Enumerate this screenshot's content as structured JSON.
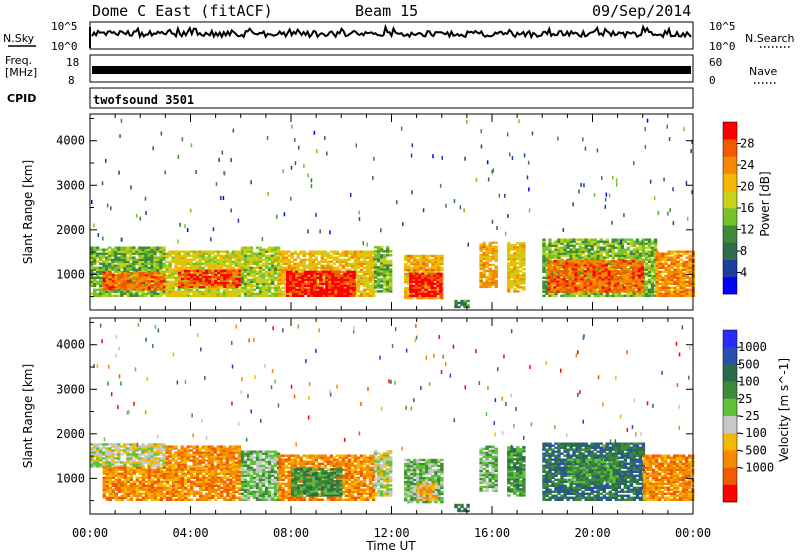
{
  "header": {
    "title": "Dome C East (fitACF)",
    "beam": "Beam 15",
    "date": "09/Sep/2014"
  },
  "sky_panel": {
    "left_label": "N.Sky",
    "right_label": "N.Search",
    "left_ticks": [
      "10^5",
      "10^0"
    ],
    "right_ticks": [
      "10^5",
      "10^0"
    ]
  },
  "freq_panel": {
    "left_label": "Freq.",
    "left_unit": "[MHz]",
    "right_label": "Nave",
    "left_ticks": [
      "18",
      "8"
    ],
    "right_ticks": [
      "60",
      "0"
    ]
  },
  "cpid_panel": {
    "label": "CPID",
    "program": "twofsound 3501"
  },
  "colors": {
    "power": [
      "#0000ff",
      "#1c3e9c",
      "#2e6b4f",
      "#3e8a3a",
      "#77c22a",
      "#c8d01a",
      "#f5b800",
      "#f58a00",
      "#f25a00",
      "#ff0000"
    ],
    "velocity": [
      "#2a2aff",
      "#2a4fb0",
      "#2a6b4f",
      "#3e8a3a",
      "#5cc23a",
      "#c8c8c8",
      "#f5b800",
      "#f58a00",
      "#f25a00",
      "#ff0000"
    ]
  },
  "chart_data": [
    {
      "type": "heatmap",
      "title": "",
      "xlabel": "",
      "ylabel": "Slant Range [km]",
      "x_ticks": [
        "00:00",
        "04:00",
        "08:00",
        "12:00",
        "16:00",
        "20:00",
        "00:00"
      ],
      "y_ticks": [
        1000,
        2000,
        3000,
        4000
      ],
      "ylim": [
        200,
        4600
      ],
      "xlim_hours": [
        0,
        24
      ],
      "colorbar": {
        "label": "Power [dB]",
        "ticks": [
          4,
          8,
          12,
          16,
          20,
          24,
          28
        ],
        "range": [
          0,
          32
        ]
      },
      "echo_blocks": [
        {
          "t0": 0.0,
          "t1": 3.0,
          "r0": 500,
          "r1": 1600,
          "v": 14
        },
        {
          "t0": 0.5,
          "t1": 3.0,
          "r0": 650,
          "r1": 1050,
          "v": 26
        },
        {
          "t0": 3.0,
          "t1": 6.0,
          "r0": 500,
          "r1": 1500,
          "v": 18
        },
        {
          "t0": 3.5,
          "t1": 6.0,
          "r0": 700,
          "r1": 1100,
          "v": 28
        },
        {
          "t0": 6.0,
          "t1": 7.5,
          "r0": 500,
          "r1": 1600,
          "v": 16
        },
        {
          "t0": 7.5,
          "t1": 11.3,
          "r0": 500,
          "r1": 1500,
          "v": 20
        },
        {
          "t0": 7.8,
          "t1": 10.5,
          "r0": 500,
          "r1": 1050,
          "v": 30
        },
        {
          "t0": 11.3,
          "t1": 12.0,
          "r0": 600,
          "r1": 1600,
          "v": 14
        },
        {
          "t0": 12.5,
          "t1": 14.0,
          "r0": 450,
          "r1": 1400,
          "v": 22
        },
        {
          "t0": 12.7,
          "t1": 13.9,
          "r0": 500,
          "r1": 1000,
          "v": 30
        },
        {
          "t0": 14.5,
          "t1": 15.0,
          "r0": 250,
          "r1": 400,
          "v": 10
        },
        {
          "t0": 15.5,
          "t1": 16.2,
          "r0": 700,
          "r1": 1700,
          "v": 22
        },
        {
          "t0": 16.6,
          "t1": 17.3,
          "r0": 600,
          "r1": 1700,
          "v": 20
        },
        {
          "t0": 18.0,
          "t1": 22.5,
          "r0": 500,
          "r1": 1800,
          "v": 14
        },
        {
          "t0": 18.2,
          "t1": 22.0,
          "r0": 600,
          "r1": 1300,
          "v": 26
        },
        {
          "t0": 22.5,
          "t1": 24.0,
          "r0": 500,
          "r1": 1500,
          "v": 24
        }
      ]
    },
    {
      "type": "heatmap",
      "title": "",
      "xlabel": "Time UT",
      "ylabel": "Slant Range [km]",
      "x_ticks": [
        "00:00",
        "04:00",
        "08:00",
        "12:00",
        "16:00",
        "20:00",
        "00:00"
      ],
      "y_ticks": [
        1000,
        2000,
        3000,
        4000
      ],
      "ylim": [
        200,
        4600
      ],
      "xlim_hours": [
        0,
        24
      ],
      "colorbar": {
        "label": "Velocity [m s^-1]",
        "tick_labels": [
          "1000",
          "500",
          "100",
          "25",
          "-25",
          "-100",
          "-500",
          "-1000"
        ]
      },
      "echo_blocks": [
        {
          "t0": 0.0,
          "t1": 3.0,
          "r0": 1250,
          "r1": 1750,
          "v": 5
        },
        {
          "t0": 0.5,
          "t1": 6.0,
          "r0": 500,
          "r1": 1250,
          "v": 7
        },
        {
          "t0": 3.0,
          "t1": 6.0,
          "r0": 1200,
          "r1": 1700,
          "v": 7
        },
        {
          "t0": 6.0,
          "t1": 7.5,
          "r0": 500,
          "r1": 1600,
          "v": 4
        },
        {
          "t0": 7.5,
          "t1": 11.3,
          "r0": 500,
          "r1": 1500,
          "v": 7
        },
        {
          "t0": 8.0,
          "t1": 10.0,
          "r0": 600,
          "r1": 1200,
          "v": 3
        },
        {
          "t0": 11.3,
          "t1": 12.0,
          "r0": 600,
          "r1": 1600,
          "v": 5
        },
        {
          "t0": 12.5,
          "t1": 14.0,
          "r0": 450,
          "r1": 1400,
          "v": 4
        },
        {
          "t0": 13.0,
          "t1": 13.8,
          "r0": 500,
          "r1": 900,
          "v": 6
        },
        {
          "t0": 14.5,
          "t1": 15.0,
          "r0": 250,
          "r1": 400,
          "v": 2
        },
        {
          "t0": 15.5,
          "t1": 16.2,
          "r0": 700,
          "r1": 1700,
          "v": 4
        },
        {
          "t0": 16.6,
          "t1": 17.3,
          "r0": 600,
          "r1": 1700,
          "v": 3
        },
        {
          "t0": 18.0,
          "t1": 22.0,
          "r0": 500,
          "r1": 1800,
          "v": 2
        },
        {
          "t0": 19.0,
          "t1": 21.0,
          "r0": 900,
          "r1": 1400,
          "v": 3
        },
        {
          "t0": 22.0,
          "t1": 24.0,
          "r0": 500,
          "r1": 1500,
          "v": 7
        }
      ]
    }
  ]
}
